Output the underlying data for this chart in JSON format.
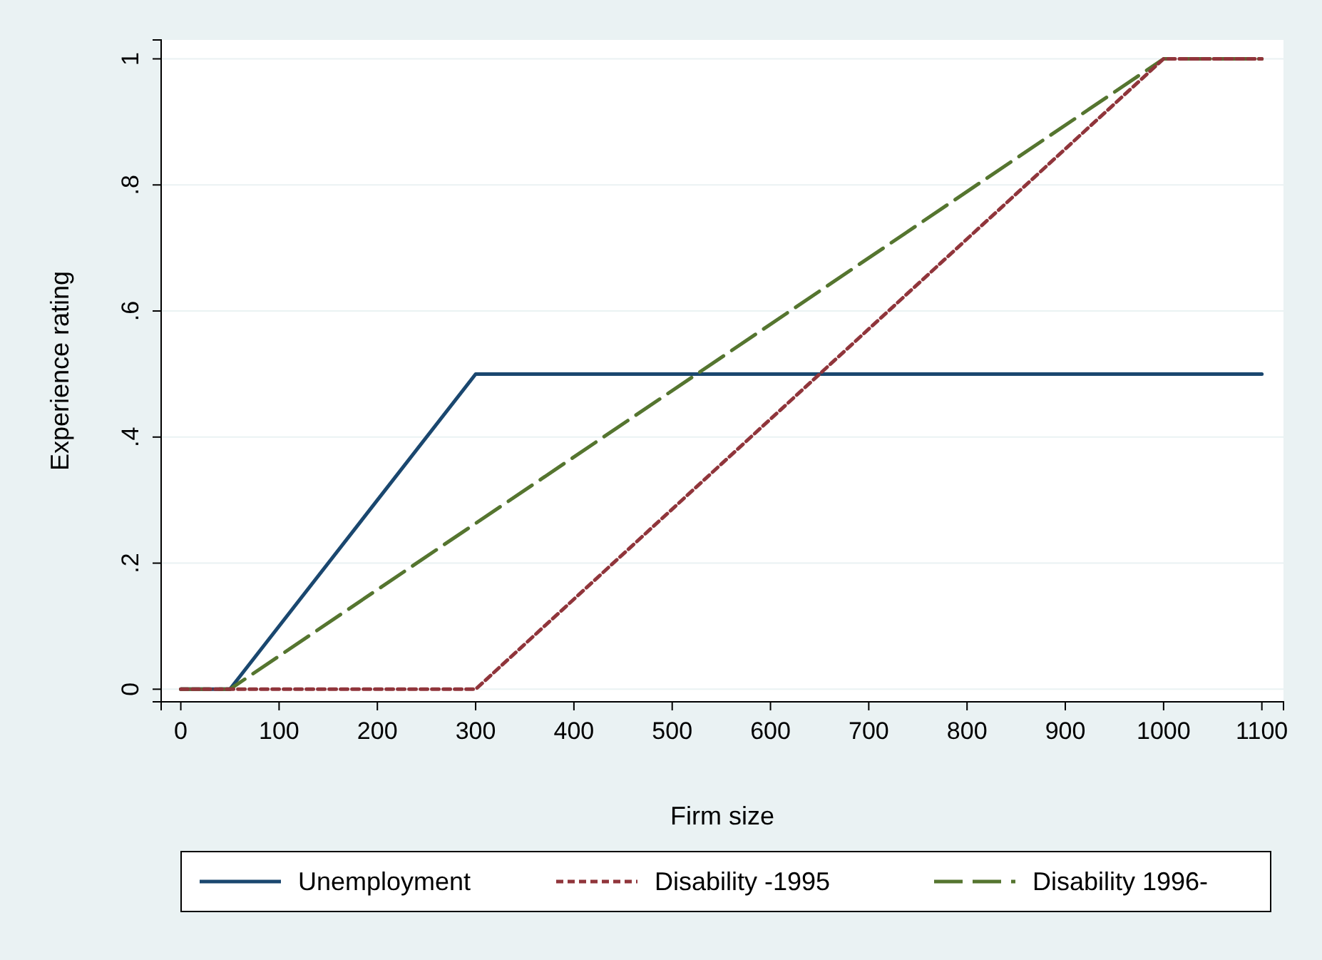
{
  "chart_data": {
    "type": "line",
    "xlabel": "Firm size",
    "ylabel": "Experience rating",
    "xlim": [
      -20,
      1122
    ],
    "ylim": [
      -0.02,
      1.03
    ],
    "xticks": [
      0,
      100,
      200,
      300,
      400,
      500,
      600,
      700,
      800,
      900,
      1000,
      1100
    ],
    "yticks": [
      0,
      {
        "value": 0.2,
        "label": ".2"
      },
      {
        "value": 0.4,
        "label": ".4"
      },
      {
        "value": 0.6,
        "label": ".6"
      },
      {
        "value": 0.8,
        "label": ".8"
      },
      1
    ],
    "grid": "y",
    "legend": "bottom",
    "series": [
      {
        "name": "Unemployment",
        "color": "#1a476f",
        "line_style": "solid",
        "x": [
          0,
          50,
          300,
          1100
        ],
        "values": [
          0,
          0,
          0.5,
          0.5
        ]
      },
      {
        "name": "Disability -1995",
        "color": "#90353b",
        "line_style": "dotted",
        "x": [
          0,
          300,
          1000,
          1100
        ],
        "values": [
          0,
          0,
          1,
          1
        ]
      },
      {
        "name": "Disability 1996-",
        "color": "#55752f",
        "line_style": "dashed",
        "x": [
          0,
          50,
          1000,
          1100
        ],
        "values": [
          0,
          0,
          1,
          1
        ]
      }
    ]
  }
}
